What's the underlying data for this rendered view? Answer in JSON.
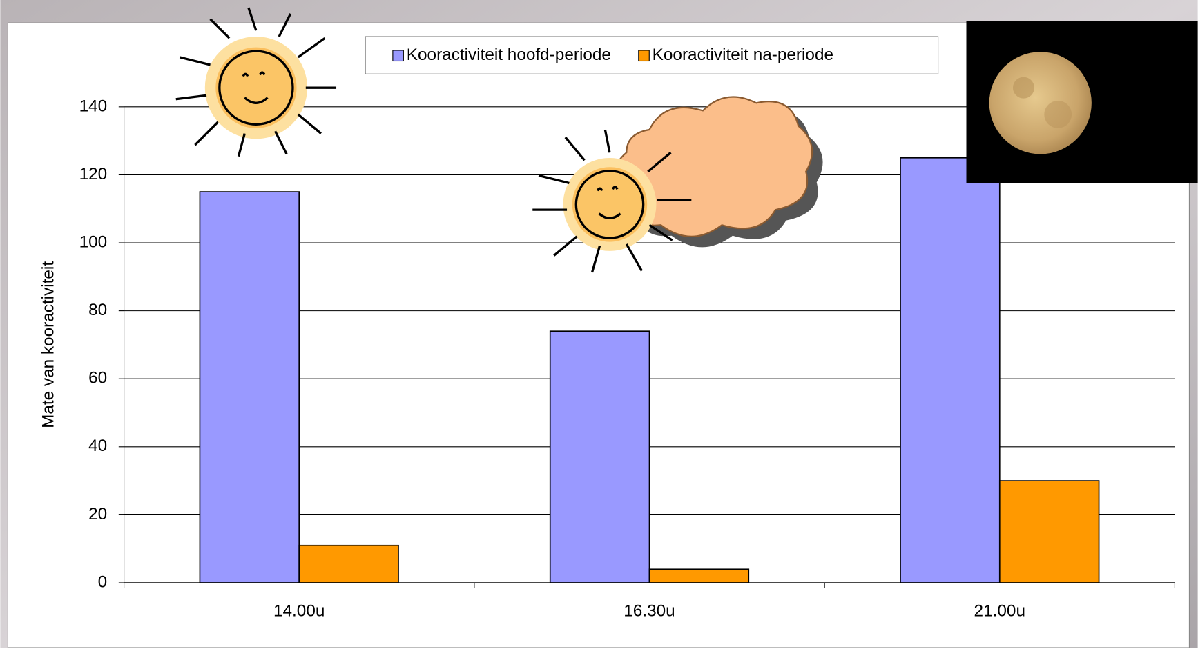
{
  "chart_data": {
    "type": "bar",
    "y_label": "Mate van kooractiviteit",
    "categories": [
      "14.00u",
      "16.30u",
      "21.00u"
    ],
    "series": [
      {
        "name": "Kooractiviteit hoofd-periode",
        "color": "#9999ff",
        "values": [
          115,
          74,
          125
        ]
      },
      {
        "name": "Kooractiviteit na-periode",
        "color": "#ff9900",
        "values": [
          11,
          4,
          30
        ]
      }
    ],
    "ylim": [
      0,
      140
    ],
    "yticks": [
      0,
      20,
      40,
      60,
      80,
      100,
      120,
      140
    ],
    "grid": true,
    "legend": "top"
  }
}
